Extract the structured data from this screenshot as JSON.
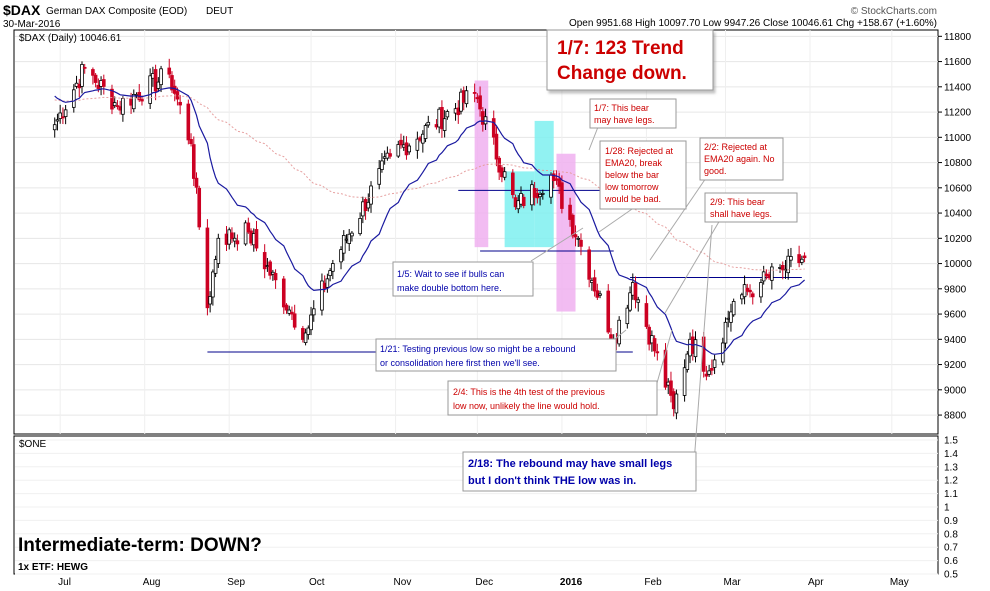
{
  "header": {
    "symbol": "$DAX",
    "name": "German DAX Composite (EOD)",
    "exchange": "DEUT",
    "date": "30-Mar-2016",
    "ohlc": "Open 9951.68  High 10097.70  Low 9947.26  Close 10046.61  Chg +158.67 (+1.60%)",
    "credit": "© StockCharts.com",
    "legend": "$DAX (Daily) 10046.61"
  },
  "colors": {
    "up": "#000000",
    "down": "#cc0022",
    "ema": "#1a1aa0",
    "long_ma": "#e6a0a0",
    "support": "#00008b",
    "pink_band": "#f0b0f0",
    "cyan_band": "#7ef0f0",
    "note_red": "#cc0000",
    "note_blue": "#0000aa"
  },
  "chart_data": {
    "type": "candlestick",
    "title": "$DAX (Daily) 10046.61",
    "ylim": [
      8650,
      11850
    ],
    "y_ticks": [
      8800,
      9000,
      9200,
      9400,
      9600,
      9800,
      10000,
      10200,
      10400,
      10600,
      10800,
      11000,
      11200,
      11400,
      11600,
      11800
    ],
    "x_ticks": [
      "Jul",
      "Aug",
      "Sep",
      "Oct",
      "Nov",
      "Dec",
      "2016",
      "Feb",
      "Mar",
      "Apr",
      "May"
    ],
    "close_anchors": [
      [
        "2015-06-29",
        11100
      ],
      [
        "2015-07-10",
        11550
      ],
      [
        "2015-07-22",
        11250
      ],
      [
        "2015-08-10",
        11500
      ],
      [
        "2015-08-18",
        10950
      ],
      [
        "2015-08-24",
        9650
      ],
      [
        "2015-08-28",
        10200
      ],
      [
        "2015-09-08",
        10250
      ],
      [
        "2015-09-24",
        9600
      ],
      [
        "2015-09-29",
        9450
      ],
      [
        "2015-10-09",
        10000
      ],
      [
        "2015-10-30",
        10850
      ],
      [
        "2015-11-30",
        11350
      ],
      [
        "2015-12-15",
        10450
      ],
      [
        "2015-12-28",
        10700
      ],
      [
        "2016-01-07",
        10200
      ],
      [
        "2016-01-20",
        9400
      ],
      [
        "2016-01-27",
        9850
      ],
      [
        "2016-02-11",
        8850
      ],
      [
        "2016-02-17",
        9400
      ],
      [
        "2016-02-24",
        9150
      ],
      [
        "2016-03-04",
        9700
      ],
      [
        "2016-03-14",
        9850
      ],
      [
        "2016-03-22",
        9950
      ],
      [
        "2016-03-30",
        10046.61
      ]
    ],
    "ema20_last": 9810,
    "support_lines": [
      {
        "start": "2015-08-24",
        "end": "2016-01-27",
        "y": 9300
      },
      {
        "start": "2015-12-02",
        "end": "2016-01-20",
        "y": 10100
      },
      {
        "start": "2015-11-24",
        "end": "2016-01-20",
        "y": 10580
      },
      {
        "start": "2016-01-26",
        "end": "2016-03-29",
        "y": 9890
      }
    ],
    "bands": [
      {
        "start": "2015-11-30",
        "end": "2015-12-05",
        "ymin": 10130,
        "ymax": 11450,
        "color": "pink"
      },
      {
        "start": "2015-12-11",
        "end": "2015-12-22",
        "ymin": 10130,
        "ymax": 10730,
        "color": "cyan"
      },
      {
        "start": "2015-12-22",
        "end": "2015-12-29",
        "ymin": 10130,
        "ymax": 11130,
        "color": "cyan"
      },
      {
        "start": "2015-12-30",
        "end": "2016-01-06",
        "ymin": 9620,
        "ymax": 10870,
        "color": "pink"
      }
    ],
    "indicator_panel": {
      "label": "$ONE",
      "ylim": [
        0.5,
        1.5
      ],
      "y_ticks": [
        0.5,
        0.6,
        0.7,
        0.8,
        0.9,
        1.0,
        1.1,
        1.2,
        1.3,
        1.4,
        1.5
      ],
      "y_tick_labels": [
        "0.5",
        "0.6",
        "0.7",
        "0.8",
        "0.9",
        "1",
        "1.1",
        "1.2",
        "1.3",
        "1.4",
        "1.5"
      ]
    }
  },
  "annotations": [
    {
      "id": "title",
      "lines": [
        "1/7: 123 Trend",
        "Change down."
      ]
    },
    {
      "id": "n17",
      "lines": [
        "1/7: This bear",
        "may have legs."
      ]
    },
    {
      "id": "n128",
      "lines": [
        "1/28: Rejected at",
        "EMA20, break",
        "below the bar",
        "low tomorrow",
        "would be bad."
      ]
    },
    {
      "id": "n22",
      "lines": [
        "2/2: Rejected at",
        "EMA20 again. No",
        "good."
      ]
    },
    {
      "id": "n29",
      "lines": [
        "2/9: This bear",
        "shall have legs."
      ]
    },
    {
      "id": "n15",
      "lines": [
        "1/5: Wait to see if bulls can",
        "make double bottom here."
      ]
    },
    {
      "id": "n121",
      "lines": [
        "1/21: Testing previous low so might be a rebound",
        "or consolidation here first then we'll see."
      ]
    },
    {
      "id": "n24",
      "lines": [
        "2/4: This is the 4th test of the previous",
        "low now, unlikely the line would hold."
      ]
    },
    {
      "id": "n218",
      "lines": [
        "2/18: The rebound may have small legs",
        "but I don't think THE low was in."
      ]
    }
  ],
  "bottom": {
    "heading": "Intermediate-term: DOWN?",
    "etf": "1x ETF: HEWG"
  }
}
